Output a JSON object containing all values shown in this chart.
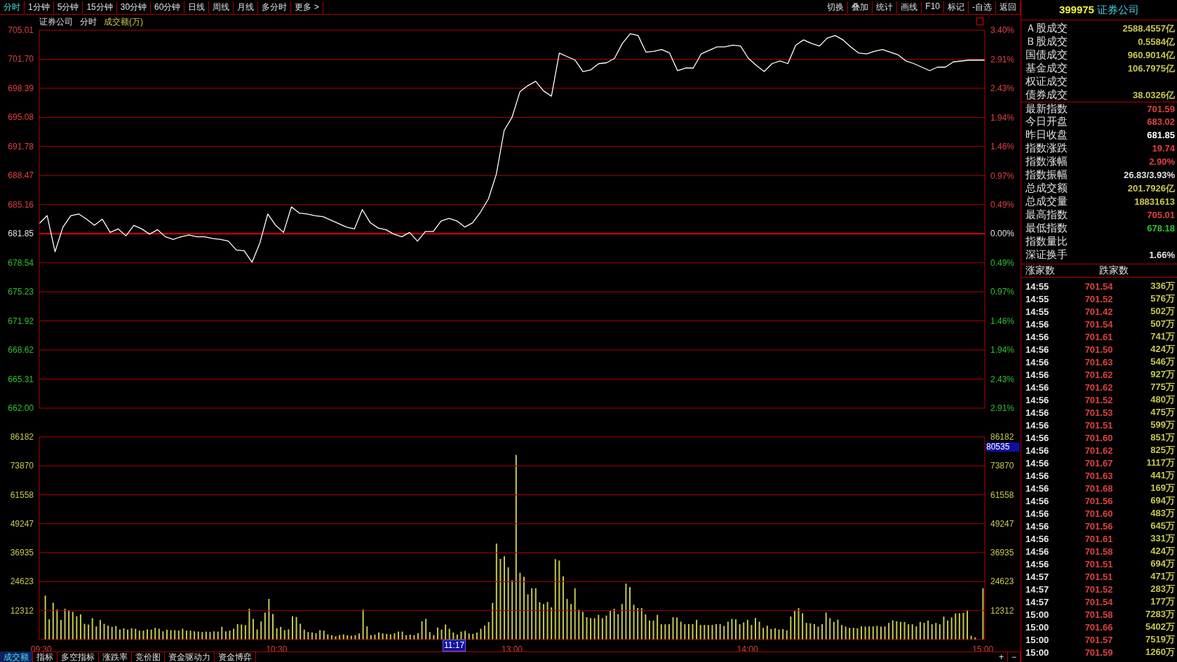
{
  "chart_data": [
    {
      "type": "other",
      "annotations": [
        "分时",
        "1分钟",
        "5分钟",
        "15分钟",
        "30分钟",
        "60分钟",
        "日线",
        "周线",
        "月线",
        "多分时",
        "更多 >",
        "切换",
        "叠加",
        "统计",
        "画线",
        "F10",
        "标记",
        "-自选",
        "返回"
      ]
    },
    {
      "type": "line",
      "annotations": [
        "证券公司",
        "分时",
        "成交额(万)"
      ],
      "marker": "none",
      "grid": "y",
      "tick_labels": "y",
      "categories": [
        null,
        null,
        null,
        null,
        null,
        null,
        null,
        null,
        null,
        null,
        null,
        null,
        null,
        null,
        null,
        null,
        null,
        null,
        null,
        null,
        null,
        null,
        null,
        null,
        null,
        null,
        null,
        null,
        null,
        null,
        null,
        null,
        null,
        null,
        null,
        null,
        null,
        null,
        null,
        null,
        null,
        null,
        null,
        null,
        null,
        null,
        null,
        null,
        null,
        null,
        null,
        null,
        null,
        null,
        null,
        null,
        null,
        null,
        null,
        null,
        null,
        null,
        null,
        null,
        null,
        null,
        null,
        null,
        null,
        null,
        null,
        null,
        null,
        null,
        null,
        null,
        null,
        null,
        null,
        null,
        null,
        null,
        null,
        null,
        null,
        null,
        null,
        null,
        null,
        null,
        null,
        null,
        null,
        null,
        null,
        null,
        null,
        null,
        null,
        null,
        null,
        null,
        null,
        null,
        null,
        null,
        null,
        null,
        null,
        null,
        null,
        null,
        null,
        null,
        null,
        null,
        null,
        null,
        null,
        null,
        null
      ],
      "ylim": [
        662,
        705.01
      ],
      "yticks": [
        705.01,
        {
          "value": 701.7,
          "label": "701.70"
        },
        698.39,
        695.08,
        691.78,
        688.47,
        685.16,
        681.85,
        678.54,
        675.23,
        671.92,
        668.62,
        665.31,
        {
          "value": 662,
          "label": "662.00"
        }
      ],
      "y2lim": [
        -2.91,
        3.4
      ],
      "y2ticks": [
        {
          "value": 3.4,
          "label": "3.40%"
        },
        {
          "value": 2.91,
          "label": "2.91%"
        },
        {
          "value": 2.43,
          "label": "2.43%"
        },
        {
          "value": 1.94,
          "label": "1.94%"
        },
        {
          "value": 1.46,
          "label": "1.46%"
        },
        {
          "value": 0.97,
          "label": "0.97%"
        },
        {
          "value": 0.49,
          "label": "0.49%"
        },
        {
          "value": 0,
          "label": "0.00%"
        },
        {
          "value": -0.49,
          "label": "0.49%"
        },
        {
          "value": -0.97,
          "label": "0.97%"
        },
        {
          "value": -1.46,
          "label": "1.46%"
        },
        {
          "value": -1.94,
          "label": "1.94%"
        },
        {
          "value": -2.43,
          "label": "2.43%"
        },
        {
          "value": -2.91,
          "label": "2.91%"
        }
      ],
      "ref_lines": [
        {
          "axis": "y",
          "value": 681.85,
          "color": "#e00000"
        }
      ],
      "series": [
        {
          "color": "#ffffff",
          "values": [
            683.0,
            683.9,
            679.8,
            682.6,
            683.9,
            684.1,
            683.5,
            682.8,
            683.5,
            682.0,
            682.4,
            681.6,
            682.8,
            682.4,
            681.8,
            682.3,
            681.5,
            681.2,
            681.5,
            681.7,
            681.5,
            681.5,
            681.3,
            681.2,
            681.0,
            680.0,
            679.9,
            678.6,
            680.8,
            684.1,
            682.8,
            682.0,
            684.9,
            684.2,
            684.1,
            683.9,
            683.8,
            683.4,
            683.0,
            682.6,
            682.4,
            684.6,
            683.1,
            682.5,
            682.3,
            681.8,
            681.5,
            682.0,
            681.0,
            682.1,
            682.1,
            683.3,
            683.6,
            683.3,
            682.6,
            683.1,
            684.3,
            685.8,
            688.6,
            693.6,
            695.1,
            698.0,
            698.7,
            699.2,
            698.1,
            697.5,
            702.4,
            702.0,
            701.6,
            700.3,
            700.5,
            701.2,
            701.3,
            701.8,
            703.5,
            704.6,
            704.4,
            702.5,
            702.6,
            702.8,
            702.4,
            700.4,
            700.7,
            700.7,
            702.3,
            702.7,
            703.1,
            703.1,
            703.3,
            703.2,
            701.8,
            701.0,
            700.3,
            701.2,
            701.5,
            701.2,
            703.3,
            703.9,
            703.5,
            703.2,
            704.1,
            704.4,
            703.9,
            703.1,
            702.4,
            702.3,
            702.6,
            702.8,
            702.5,
            702.2,
            701.5,
            701.2,
            700.8,
            700.4,
            700.8,
            700.8,
            701.4,
            701.5,
            701.6,
            701.6,
            701.6
          ]
        }
      ]
    },
    {
      "type": "bar",
      "grid": "y",
      "annotations": [
        "11:17",
        "80535"
      ],
      "categories": [
        "09:30",
        null,
        null,
        null,
        null,
        null,
        null,
        null,
        null,
        null,
        null,
        null,
        null,
        null,
        null,
        null,
        null,
        null,
        null,
        null,
        null,
        null,
        null,
        null,
        null,
        null,
        null,
        null,
        null,
        null,
        null,
        null,
        null,
        null,
        null,
        null,
        null,
        null,
        null,
        null,
        null,
        null,
        null,
        null,
        null,
        null,
        null,
        null,
        null,
        null,
        null,
        null,
        null,
        null,
        null,
        null,
        null,
        null,
        null,
        null,
        "10:30",
        null,
        null,
        null,
        null,
        null,
        null,
        null,
        null,
        null,
        null,
        null,
        null,
        null,
        null,
        null,
        null,
        null,
        null,
        null,
        null,
        null,
        null,
        null,
        null,
        null,
        null,
        null,
        null,
        null,
        null,
        null,
        null,
        null,
        null,
        null,
        null,
        null,
        null,
        null,
        null,
        null,
        null,
        null,
        null,
        null,
        null,
        null,
        null,
        null,
        null,
        null,
        null,
        null,
        null,
        null,
        null,
        null,
        null,
        null,
        "13:00",
        null,
        null,
        null,
        null,
        null,
        null,
        null,
        null,
        null,
        null,
        null,
        null,
        null,
        null,
        null,
        null,
        null,
        null,
        null,
        null,
        null,
        null,
        null,
        null,
        null,
        null,
        null,
        null,
        null,
        null,
        null,
        null,
        null,
        null,
        null,
        null,
        null,
        null,
        null,
        null,
        null,
        null,
        null,
        null,
        null,
        null,
        null,
        null,
        null,
        null,
        null,
        null,
        null,
        null,
        null,
        null,
        null,
        null,
        null,
        "14:00",
        null,
        null,
        null,
        null,
        null,
        null,
        null,
        null,
        null,
        null,
        null,
        null,
        null,
        null,
        null,
        null,
        null,
        null,
        null,
        null,
        null,
        null,
        null,
        null,
        null,
        null,
        null,
        null,
        null,
        null,
        null,
        null,
        null,
        null,
        null,
        null,
        null,
        null,
        null,
        null,
        null,
        null,
        null,
        null,
        null,
        null,
        null,
        null,
        null,
        null,
        null,
        null,
        null,
        null,
        null,
        null,
        null,
        null,
        null,
        "15:00"
      ],
      "ylim": [
        0,
        86182
      ],
      "yticks": [
        12312,
        24623,
        36935,
        49247,
        61558,
        73870,
        86182
      ],
      "y2lim": [
        0,
        86182
      ],
      "y2ticks": [
        12312,
        24623,
        36935,
        49247,
        61558,
        73870,
        86182
      ],
      "series": [
        {
          "color": "#c8c850",
          "values": [
            null,
            18700,
            8600,
            15700,
            12800,
            8300,
            13100,
            12500,
            11800,
            9900,
            10700,
            6700,
            6400,
            9100,
            5600,
            8300,
            6700,
            5900,
            5400,
            5800,
            4300,
            4800,
            4200,
            4800,
            4600,
            3800,
            3800,
            4300,
            4200,
            5000,
            4600,
            3500,
            4200,
            4000,
            4000,
            3800,
            4600,
            3800,
            3800,
            3500,
            3400,
            3200,
            3400,
            3200,
            3500,
            3400,
            5400,
            3500,
            3800,
            4600,
            6600,
            6400,
            6100,
            13100,
            8800,
            4300,
            7700,
            11500,
            17300,
            10900,
            4800,
            5400,
            4000,
            4300,
            9900,
            9600,
            6700,
            4200,
            3200,
            3000,
            2700,
            4000,
            3800,
            2200,
            1900,
            1400,
            1900,
            2200,
            1800,
            1600,
            1900,
            2600,
            12800,
            5600,
            1900,
            2100,
            3000,
            2600,
            2400,
            2200,
            2700,
            3400,
            3400,
            1900,
            2100,
            1900,
            2700,
            7800,
            8800,
            3200,
            1900,
            5100,
            4200,
            6400,
            4600,
            3000,
            2100,
            3400,
            3700,
            2600,
            2400,
            3000,
            4600,
            5900,
            7500,
            15600,
            40800,
            34300,
            35400,
            30700,
            25200,
            78500,
            28400,
            26700,
            19200,
            21800,
            21800,
            15900,
            15100,
            16000,
            13700,
            34200,
            33600,
            26900,
            17300,
            15100,
            21800,
            12700,
            11800,
            9500,
            9100,
            9100,
            10500,
            9100,
            10200,
            12200,
            13100,
            10800,
            15100,
            23800,
            22300,
            14800,
            13400,
            13400,
            10700,
            8100,
            8100,
            10500,
            6500,
            6500,
            6500,
            9500,
            9400,
            7600,
            6500,
            6600,
            6600,
            8400,
            6200,
            6200,
            6200,
            6200,
            6600,
            6600,
            5800,
            7600,
            8800,
            8600,
            6500,
            7300,
            8400,
            6200,
            9200,
            7600,
            5000,
            5900,
            4500,
            4800,
            4300,
            4500,
            3900,
            9800,
            12200,
            13400,
            11200,
            7100,
            6900,
            6600,
            5500,
            6600,
            11500,
            9100,
            7500,
            8500,
            6200,
            5500,
            5000,
            5000,
            4800,
            5600,
            5500,
            5600,
            5600,
            5800,
            5500,
            5600,
            7100,
            8200,
            7800,
            7500,
            7500,
            6500,
            6500,
            5600,
            7500,
            7100,
            8100,
            6500,
            7100,
            6500,
            9800,
            8100,
            9400,
            11100,
            11200,
            11400,
            12400,
            1600,
            900,
            null,
            21800
          ]
        }
      ]
    },
    {
      "type": "other",
      "title": "399975 证券公司",
      "categories": [
        "Ａ股成交",
        "Ｂ股成交",
        "国债成交",
        "基金成交",
        "权证成交",
        "债券成交",
        "最新指数",
        "今日开盘",
        "昨日收盘",
        "指数涨跌",
        "指数涨幅",
        "指数振幅",
        "总成交额",
        "总成交量",
        "最高指数",
        "最低指数",
        "指数量比",
        "深证换手"
      ],
      "value_labels": [
        "2588.4557亿",
        "0.5584亿",
        "960.9014亿",
        "106.7975亿",
        null,
        "38.0326亿",
        "701.59",
        "683.02",
        "681.85",
        "19.74",
        "2.90%",
        "26.83/3.93%",
        "201.7926亿",
        "18831613",
        "705.01",
        "678.18",
        null,
        "1.66%"
      ],
      "colors": [
        "#c8c850",
        "#c8c850",
        "#c8c850",
        "#c8c850",
        null,
        "#c8c850",
        "#e04040",
        "#e04040",
        "#ffffff",
        "#e04040",
        "#e04040",
        "#e0e0e0",
        "#c8c850",
        "#c8c850",
        "#e04040",
        "#30c030",
        null,
        "#e0e0e0"
      ],
      "annotations": [
        "涨家数",
        "跌家数",
        "14:55",
        "701.54",
        "336万",
        "14:55",
        "701.52",
        "576万",
        "14:55",
        "701.42",
        "502万",
        "14:56",
        "701.54",
        "507万",
        "14:56",
        "701.61",
        "741万",
        "14:56",
        "701.50",
        "424万",
        "14:56",
        "701.63",
        "546万",
        "14:56",
        "701.62",
        "927万",
        "14:56",
        "701.62",
        "775万",
        "14:56",
        "701.52",
        "480万",
        "14:56",
        "701.53",
        "475万",
        "14:56",
        "701.51",
        "599万",
        "14:56",
        "701.60",
        "851万",
        "14:56",
        "701.62",
        "825万",
        "14:56",
        "701.67",
        "1117万",
        "14:56",
        "701.63",
        "441万",
        "14:56",
        "701.68",
        "169万",
        "14:56",
        "701.56",
        "694万",
        "14:56",
        "701.60",
        "483万",
        "14:56",
        "701.56",
        "645万",
        "14:56",
        "701.61",
        "331万",
        "14:56",
        "701.58",
        "424万",
        "14:56",
        "701.51",
        "694万",
        "14:57",
        "701.51",
        "471万",
        "14:57",
        "701.52",
        "283万",
        "14:57",
        "701.54",
        "177万",
        "15:00",
        "701.58",
        "7283万",
        "15:00",
        "701.66",
        "5402万",
        "15:00",
        "701.57",
        "7519万",
        "15:00",
        "701.59",
        "1260万"
      ]
    },
    {
      "type": "other",
      "annotations": [
        "成交额",
        "指标",
        "多空指标",
        "涨跌率",
        "竞价图",
        "资金驱动力",
        "资金博弈",
        "+",
        "−"
      ]
    }
  ]
}
